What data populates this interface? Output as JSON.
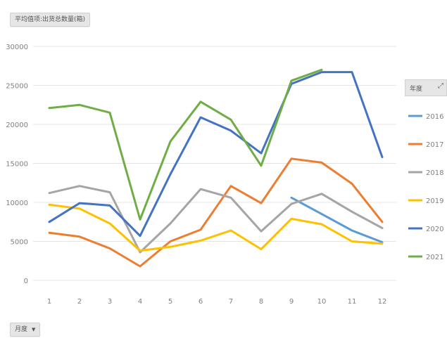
{
  "header": {
    "value_field": "平均值项:出货总数量(箱)",
    "axis_field": "月度",
    "axis_field_arrow": "▼",
    "legend_field": "年度",
    "filter_glyph": "⤢"
  },
  "chart_data": {
    "type": "line",
    "title": "",
    "xlabel": "",
    "ylabel": "",
    "x": [
      1,
      2,
      3,
      4,
      5,
      6,
      7,
      8,
      9,
      10,
      11,
      12
    ],
    "x_tick_labels": [
      "1",
      "2",
      "3",
      "4",
      "5",
      "6",
      "7",
      "8",
      "9",
      "10",
      "11",
      "12"
    ],
    "ylim": [
      0,
      30000
    ],
    "y_ticks": [
      0,
      5000,
      10000,
      15000,
      20000,
      25000,
      30000
    ],
    "y_tick_labels": [
      "0",
      "5000",
      "10000",
      "15000",
      "20000",
      "25000",
      "30000"
    ],
    "grid": true,
    "legend_position": "right",
    "series": [
      {
        "name": "2016",
        "color": "#5b9bd5",
        "values": [
          null,
          null,
          null,
          null,
          null,
          null,
          null,
          null,
          10600,
          8500,
          6400,
          4900
        ]
      },
      {
        "name": "2017",
        "color": "#ed7d31",
        "values": [
          6100,
          5600,
          4100,
          1800,
          5000,
          6500,
          12100,
          9900,
          15600,
          15100,
          12400,
          7500
        ]
      },
      {
        "name": "2018",
        "color": "#a5a5a5",
        "values": [
          11200,
          12100,
          11300,
          3600,
          7300,
          11700,
          10600,
          6300,
          9800,
          11100,
          8800,
          6700
        ]
      },
      {
        "name": "2019",
        "color": "#ffc000",
        "values": [
          9700,
          9200,
          7300,
          3800,
          4300,
          5100,
          6400,
          4000,
          7900,
          7200,
          5000,
          4700
        ]
      },
      {
        "name": "2020",
        "color": "#4472c4",
        "values": [
          7500,
          9900,
          9600,
          5700,
          13600,
          20900,
          19200,
          16300,
          25200,
          26700,
          26700,
          15800
        ]
      },
      {
        "name": "2021",
        "color": "#70ad47",
        "values": [
          22100,
          22500,
          21500,
          7800,
          17800,
          22900,
          20600,
          14700,
          25600,
          27000,
          null,
          null
        ]
      }
    ]
  }
}
